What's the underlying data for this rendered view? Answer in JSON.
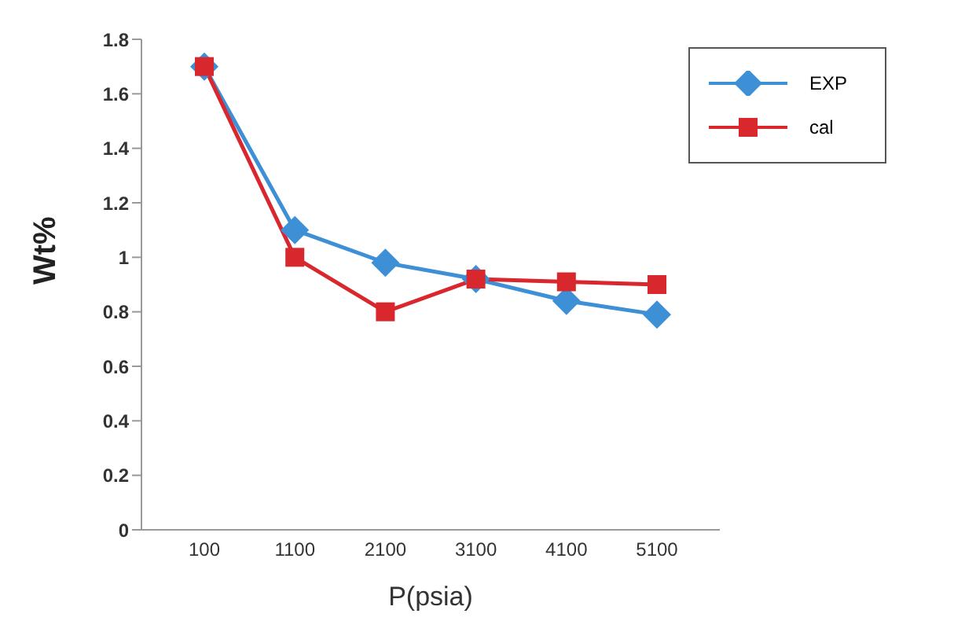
{
  "chart_data": {
    "type": "line",
    "xlabel": "P(psia)",
    "ylabel": "Wt%",
    "categories": [
      "100",
      "1100",
      "2100",
      "3100",
      "4100",
      "5100"
    ],
    "series": [
      {
        "name": "EXP",
        "color": "#3d8fd6",
        "marker": "diamond",
        "values": [
          1.7,
          1.1,
          0.98,
          0.92,
          0.84,
          0.79
        ]
      },
      {
        "name": "cal",
        "color": "#d9272e",
        "marker": "square",
        "values": [
          1.7,
          1.0,
          0.8,
          0.92,
          0.91,
          0.9
        ]
      }
    ],
    "ylim": [
      0,
      1.8
    ],
    "yticks": [
      0,
      0.2,
      0.4,
      0.6,
      0.8,
      1,
      1.2,
      1.4,
      1.6,
      1.8
    ],
    "legend": "top right"
  }
}
